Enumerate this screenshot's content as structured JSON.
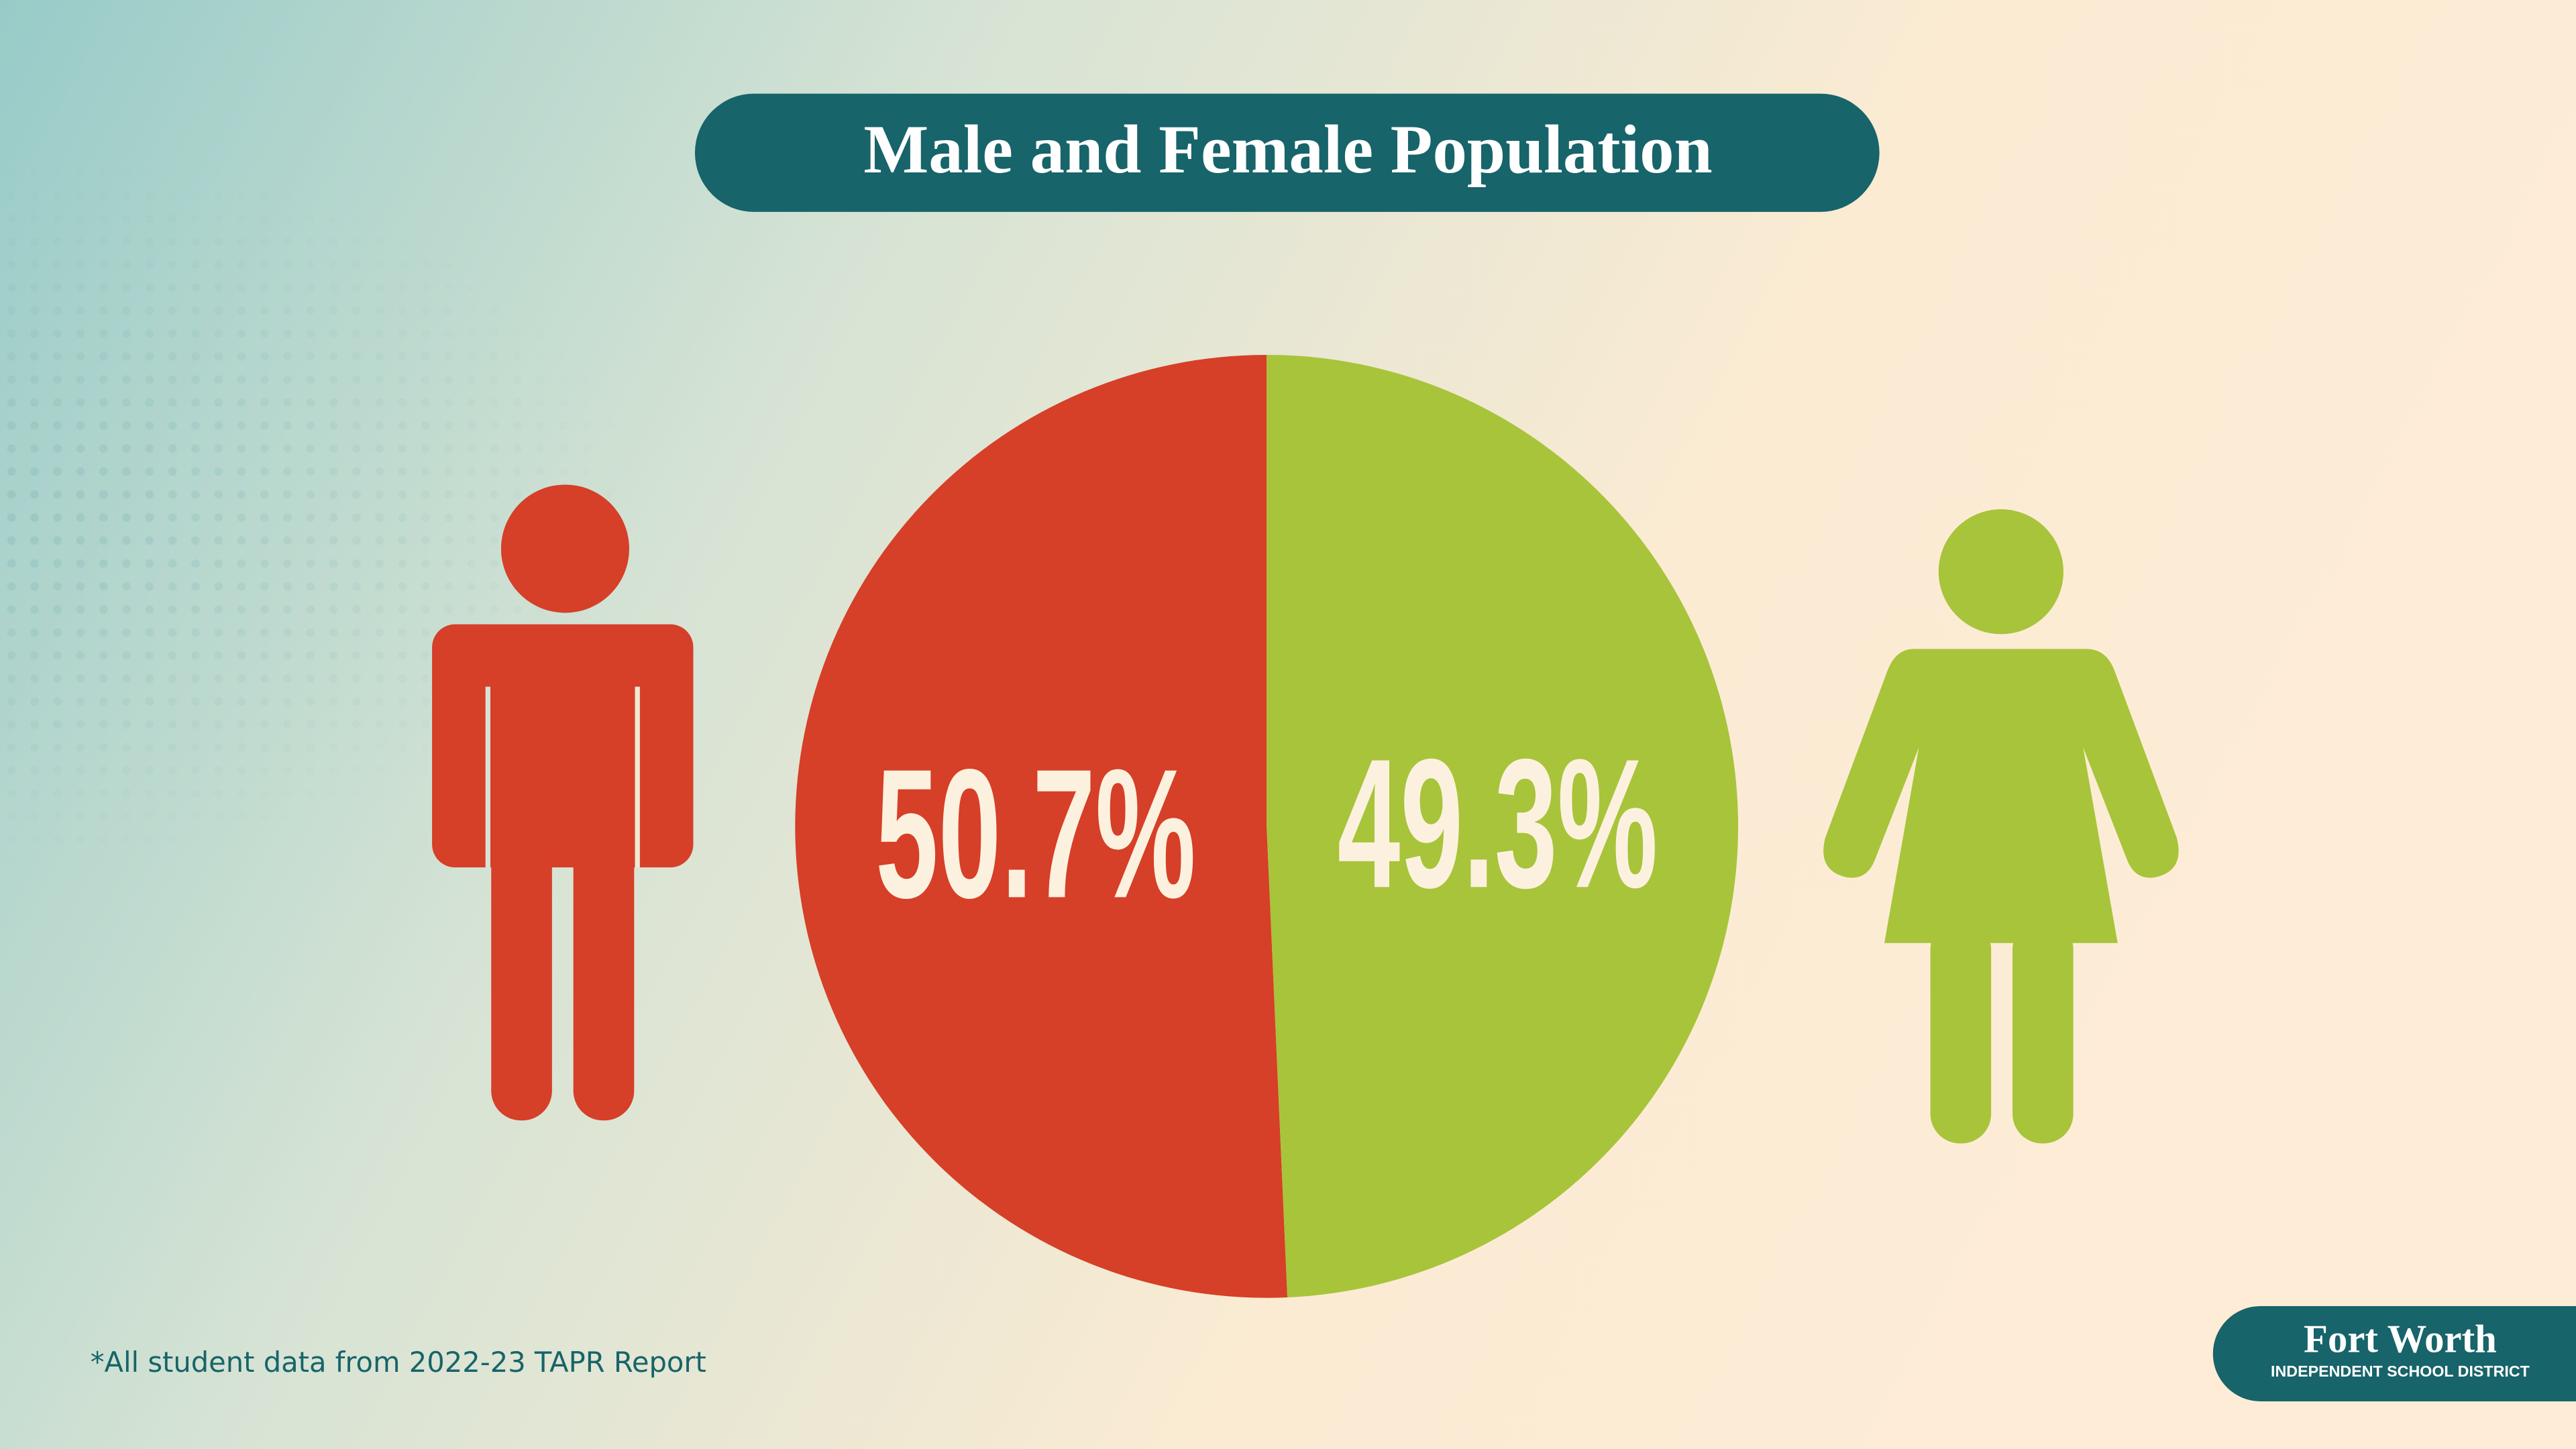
{
  "chart_data": {
    "type": "pie",
    "title": "Male and Female Population",
    "values": [
      50.7,
      49.3
    ],
    "value_labels": [
      "50.7%",
      "49.3%"
    ],
    "colors": [
      "#d63f28",
      "#a8c43a"
    ],
    "footnote": "*All student data from 2022-23 TAPR Report"
  },
  "logo": {
    "name": "Fort Worth",
    "subtitle": "INDEPENDENT SCHOOL DISTRICT"
  }
}
